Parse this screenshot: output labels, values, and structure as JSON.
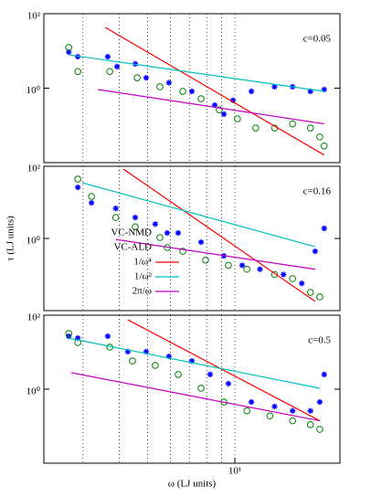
{
  "chart_data": [
    {
      "type": "scatter",
      "annotation": "c=0.05",
      "xlog": true,
      "ylog": true,
      "xlim": [
        2.2,
        23
      ],
      "ylim": [
        0.01,
        100
      ],
      "xgrid": [
        3,
        4,
        5,
        6,
        7,
        8,
        9,
        10
      ],
      "yticks": [
        {
          "value": 1,
          "label": "10⁰"
        },
        {
          "value": 100,
          "label": "10²"
        }
      ],
      "series": [
        {
          "style": "star",
          "color": "#0000ff",
          "x": [
            2.68,
            2.88,
            3.65,
            3.93,
            4.54,
            4.95,
            5.93,
            7.11,
            8.52,
            9.17,
            9.85,
            11.4,
            13.7,
            15.8,
            18.2,
            20.3
          ],
          "values": [
            9.3,
            7.0,
            7.0,
            3.8,
            4.5,
            1.9,
            1.4,
            0.82,
            0.35,
            0.2,
            0.47,
            0.82,
            1.09,
            1.09,
            0.82,
            0.92
          ]
        },
        {
          "style": "circle",
          "color": "#008000",
          "x": [
            2.68,
            2.88,
            3.71,
            4.61,
            5.52,
            6.62,
            7.65,
            8.84,
            10.2,
            11.8,
            13.7,
            15.8,
            18.2,
            19.6,
            20.3
          ],
          "values": [
            12.4,
            2.8,
            2.8,
            1.9,
            1.09,
            0.82,
            0.52,
            0.26,
            0.15,
            0.085,
            0.085,
            0.11,
            0.085,
            0.049,
            0.028
          ]
        },
        {
          "style": "line",
          "color": "#ff0000",
          "x": [
            3.58,
            20.3
          ],
          "values": [
            42.8,
            0.016
          ]
        },
        {
          "style": "line",
          "color": "#00bfbf",
          "x": [
            2.67,
            20.3
          ],
          "values": [
            7.9,
            0.82
          ]
        },
        {
          "style": "line",
          "color": "#bf00bf",
          "x": [
            3.38,
            20.3
          ],
          "values": [
            0.92,
            0.11
          ]
        }
      ]
    },
    {
      "type": "scatter",
      "annotation": "c=0.16",
      "ylabel": "τ (LJ units)",
      "xlog": true,
      "ylog": true,
      "xlim": [
        2.2,
        23
      ],
      "ylim": [
        0.01,
        100
      ],
      "legend": "left",
      "xgrid": [
        3,
        4,
        5,
        6,
        7,
        8,
        9,
        10
      ],
      "yticks": [
        {
          "value": 1,
          "label": "10⁰"
        },
        {
          "value": 100,
          "label": "10²"
        }
      ],
      "series": [
        {
          "name": "VC-NMD",
          "style": "star",
          "color": "#0000ff",
          "x": [
            2.88,
            3.21,
            3.89,
            4.54,
            5.32,
            6.38,
            7.65,
            9.17,
            10.6,
            12.2,
            14.7,
            17.0,
            18.9,
            20.3
          ],
          "values": [
            26,
            9.7,
            6.8,
            3.8,
            2.5,
            1.42,
            0.79,
            0.33,
            0.18,
            0.14,
            0.1,
            0.057,
            0.44,
            1.9
          ]
        },
        {
          "name": "VC-ALD",
          "style": "circle",
          "color": "#008000",
          "x": [
            2.88,
            3.21,
            3.89,
            4.54,
            5.52,
            6.62,
            7.93,
            9.5,
            11.0,
            13.7,
            15.8,
            18.2,
            19.6
          ],
          "values": [
            44,
            14.6,
            3.8,
            2.1,
            1.06,
            0.44,
            0.25,
            0.18,
            0.14,
            0.1,
            0.077,
            0.032,
            0.024
          ]
        },
        {
          "name": "1/ω⁴",
          "style": "line",
          "color": "#ff0000",
          "x": [
            4.13,
            18.9
          ],
          "values": [
            84,
            0.018
          ]
        },
        {
          "name": "1/ω²",
          "style": "line",
          "color": "#00bfbf",
          "x": [
            2.98,
            18.9
          ],
          "values": [
            35,
            0.59
          ]
        },
        {
          "name": "2π/ω",
          "style": "line",
          "color": "#bf00bf",
          "x": [
            3.89,
            18.9
          ],
          "values": [
            0.94,
            0.14
          ]
        }
      ]
    },
    {
      "type": "scatter",
      "annotation": "c=0.5",
      "xlabel": "ω (LJ units)",
      "xlog": true,
      "ylog": true,
      "xlim": [
        2.2,
        23
      ],
      "ylim": [
        0.01,
        100
      ],
      "xgrid": [
        3,
        4,
        5,
        6,
        7,
        8,
        9,
        10
      ],
      "xticks": [
        {
          "value": 10,
          "label": "10¹"
        }
      ],
      "yticks": [
        {
          "value": 1,
          "label": "10⁰"
        },
        {
          "value": 100,
          "label": "10²"
        }
      ],
      "series": [
        {
          "style": "star",
          "color": "#0000ff",
          "x": [
            2.68,
            2.88,
            3.65,
            4.28,
            4.95,
            5.93,
            7.11,
            8.22,
            9.5,
            11.4,
            13.7,
            15.8,
            18.2,
            19.6,
            20.3
          ],
          "values": [
            27,
            24,
            27,
            10.3,
            10.3,
            7.7,
            5.8,
            2.5,
            1.41,
            0.45,
            0.34,
            0.26,
            0.26,
            0.45,
            2.5
          ]
        },
        {
          "style": "circle",
          "color": "#008000",
          "x": [
            2.68,
            2.88,
            3.71,
            4.44,
            5.32,
            6.38,
            7.65,
            9.17,
            11.0,
            13.2,
            15.8,
            18.2,
            19.6
          ],
          "values": [
            32,
            18.2,
            13.7,
            5.8,
            4.4,
            2.5,
            1.06,
            0.45,
            0.26,
            0.19,
            0.14,
            0.11,
            0.082
          ]
        },
        {
          "style": "line",
          "color": "#ff0000",
          "x": [
            4.28,
            19.6
          ],
          "values": [
            75,
            0.14
          ]
        },
        {
          "style": "line",
          "color": "#00bfbf",
          "x": [
            2.68,
            19.6
          ],
          "values": [
            24,
            1.06
          ]
        },
        {
          "style": "line",
          "color": "#bf00bf",
          "x": [
            2.73,
            19.6
          ],
          "values": [
            2.8,
            0.14
          ]
        }
      ]
    }
  ]
}
